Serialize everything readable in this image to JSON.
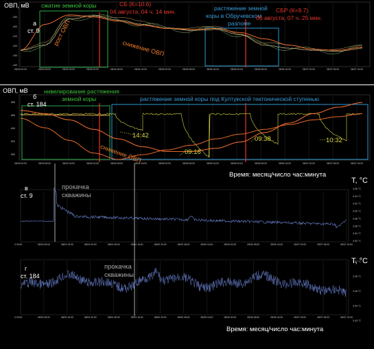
{
  "colors": {
    "background": "#000000",
    "orp_line": "#d8c28a",
    "orp_trend": "#e86a2c",
    "temp_line": "#6a82d0",
    "event_line": "#e8362a",
    "compression_box": "#2ea84a",
    "extension_box": "#2e9bd4",
    "annotation_yellow": "#dedc42"
  },
  "panel_a": {
    "ylabel": "ОВП, мВ",
    "letter": "а",
    "station": "ст. 9",
    "compression": "сжатие земной коры",
    "eq1": {
      "line1": "СБ (К=10.6)",
      "line2": "04 августа, 04 ч. 14 мин."
    },
    "obruchev": [
      "растяжение  земной",
      "коры в Обручевском",
      "разломе"
    ],
    "eq2": {
      "line1": "СБР (К=9.7)",
      "line2": "06 августа, 07 ч. 25 мин."
    },
    "rise": "рост ОВП",
    "fall": "снижение ОВП",
    "yticks": [
      "-390",
      "-400",
      "-410",
      "-420",
      "-430",
      "-440"
    ],
    "xticks": [
      "08/03 00:00",
      "08/03 08:00",
      "08/03 16:00",
      "08/04 00:00",
      "08/04 08:00",
      "08/04 16:00",
      "08/05 00:00",
      "08/05 08:00",
      "08/05 16:00",
      "08/06 00:00",
      "08/06 08:00",
      "08/06 16:00",
      "08/07 00:00",
      "08/07 08:00",
      "08/07 16:00"
    ]
  },
  "panel_b": {
    "ylabel": "ОВП, мВ",
    "letter": "б",
    "station": "ст. 184",
    "leveling": [
      "нивелирование  растяжения",
      "земной коры"
    ],
    "kultuk": "растяжение земной коры под Култукской тектонической ступенью",
    "fall": "снижение ОВП",
    "times": [
      "14:42",
      "09:16",
      "09:38",
      "10:32"
    ],
    "yticks": [
      "880",
      "860",
      "840",
      "820",
      "800"
    ],
    "xticks": [
      "08/03 00:00",
      "08/03 08:00",
      "08/03 16:00",
      "08/04 00:00",
      "08/04 08:00",
      "08/04 16:00",
      "08/05 00:00",
      "08/05 08:00",
      "08/05 16:00",
      "08/06 00:00",
      "08/06 08:00",
      "08/06 16:00",
      "08/07 00:00",
      "08/07 08:00",
      "08/07 16:00"
    ],
    "xlabel": "Время: месяц/число час:минута"
  },
  "panel_c": {
    "letter": "в",
    "station": "ст. 9",
    "pumping": [
      "прокачка",
      "скважины"
    ],
    "ylabel": "T, °C",
    "yticks": [
      "4.06 °C",
      "4.04 °C",
      "4.02 °C",
      "4.00 °C",
      "3.98 °C",
      "3.96 °C",
      "3.94 °C",
      "3.92 °C"
    ],
    "xticks": [
      "3 00:00",
      "08/03 08:00",
      "08/03 16:00",
      "08/04 00:00",
      "08/04 08:00",
      "08/04 16:00",
      "08/05 00:00",
      "08/05 08:00",
      "08/05 16:00",
      "08/06 00:00",
      "08/06 08:00",
      "08/06 16:00",
      "08/07 00:00",
      "08/07 08:00",
      "08/07 16:00"
    ]
  },
  "panel_d": {
    "letter": "г",
    "station": "ст. 184",
    "pumping": [
      "прокачка",
      "скважины"
    ],
    "ylabel": "T, °C",
    "yticks": [
      "3.47 °C",
      "3.46 °C",
      "3.45 °C",
      "3.44 °C",
      "3.43 °C"
    ],
    "xticks": [
      "3 00:00",
      "08/03 08:00",
      "08/03 16:00",
      "08/04 00:00",
      "08/04 08:00",
      "08/04 16:00",
      "08/05 00:00",
      "08/05 08:00",
      "08/05 16:00",
      "08/06 00:00",
      "08/06 08:00",
      "08/06 16:00",
      "08/07 00:00",
      "08/07 08:00",
      "08/07 16:00"
    ],
    "xlabel": "Время: месяц/число час:минута"
  },
  "chart_data": [
    {
      "type": "line",
      "title": "",
      "ylabel": "ОВП, мВ",
      "ylim": [
        -440,
        -380
      ],
      "categories": [
        "08/03 00:00",
        "08/03 08:00",
        "08/03 16:00",
        "08/04 00:00",
        "08/04 08:00",
        "08/04 16:00",
        "08/05 00:00",
        "08/05 08:00",
        "08/05 16:00",
        "08/06 00:00",
        "08/06 08:00",
        "08/06 16:00",
        "08/07 00:00",
        "08/07 08:00",
        "08/07 16:00"
      ],
      "series": [
        {
          "values": [
            -425,
            -420,
            -395,
            -392,
            -396,
            -400,
            -404,
            -406,
            -405,
            -410,
            -420,
            -423,
            -425,
            -426,
            -423
          ]
        }
      ]
    },
    {
      "type": "line",
      "title": "",
      "ylabel": "ОВП, мВ",
      "ylim": [
        800,
        880
      ],
      "categories": [
        "08/03 00:00",
        "08/03 08:00",
        "08/03 16:00",
        "08/04 00:00",
        "08/04 08:00",
        "08/04 16:00",
        "08/05 00:00",
        "08/05 08:00",
        "08/05 16:00",
        "08/06 00:00",
        "08/06 08:00",
        "08/06 16:00",
        "08/07 00:00",
        "08/07 08:00",
        "08/07 16:00"
      ],
      "series": [
        {
          "values": [
            862,
            861,
            860,
            858,
            857,
            856,
            830,
            864,
            862,
            848,
            864,
            852,
            864,
            860,
            862
          ]
        }
      ]
    },
    {
      "type": "line",
      "title": "",
      "ylabel": "T, °C",
      "ylim": [
        3.92,
        4.06
      ],
      "categories": [
        "08/03 00:00",
        "08/03 08:00",
        "08/03 16:00",
        "08/04 00:00",
        "08/04 08:00",
        "08/04 16:00",
        "08/05 00:00",
        "08/05 08:00",
        "08/05 16:00",
        "08/06 00:00",
        "08/06 08:00",
        "08/06 16:00",
        "08/07 00:00",
        "08/07 08:00",
        "08/07 16:00"
      ],
      "series": [
        {
          "values": [
            3.972,
            3.972,
            3.996,
            3.982,
            3.976,
            3.972,
            3.97,
            3.978,
            3.972,
            3.974,
            3.971,
            3.969,
            3.968,
            3.964,
            3.968
          ]
        }
      ]
    },
    {
      "type": "line",
      "title": "",
      "ylabel": "T, °C",
      "ylim": [
        3.43,
        3.47
      ],
      "categories": [
        "08/03 00:00",
        "08/03 08:00",
        "08/03 16:00",
        "08/04 00:00",
        "08/04 08:00",
        "08/04 16:00",
        "08/05 00:00",
        "08/05 08:00",
        "08/05 16:00",
        "08/06 00:00",
        "08/06 08:00",
        "08/06 16:00",
        "08/07 00:00",
        "08/07 08:00",
        "08/07 16:00"
      ],
      "series": [
        {
          "values": [
            3.451,
            3.452,
            3.453,
            3.446,
            3.45,
            3.447,
            3.448,
            3.449,
            3.447,
            3.45,
            3.451,
            3.448,
            3.445,
            3.44,
            3.442
          ]
        }
      ]
    }
  ]
}
